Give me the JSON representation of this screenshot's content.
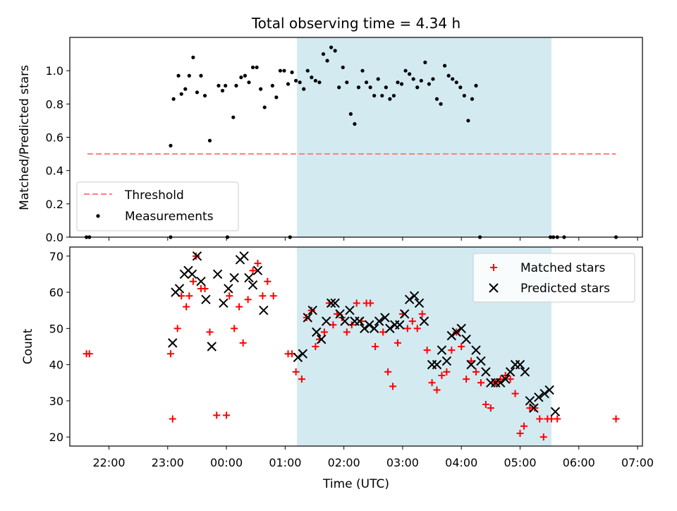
{
  "chart_data": [
    {
      "type": "scatter",
      "title": "Total observing time = 4.34 h",
      "ylabel": "Matched/Predicted stars",
      "ylim": [
        0,
        1.2
      ],
      "yticks": [
        "0.0",
        "0.2",
        "0.4",
        "0.6",
        "0.8",
        "1.0"
      ],
      "x_unit": "time (UTC)",
      "xlim": [
        "21:20",
        "07:05"
      ],
      "shaded_interval": [
        "01:12",
        "05:32"
      ],
      "shade_color": "#d3eaf1",
      "grid": false,
      "legend_position": "lower-left",
      "threshold": {
        "name": "Threshold",
        "value": 0.5,
        "x_range": [
          "21:38",
          "06:38"
        ],
        "color": "#ff7f7f",
        "style": "dashed"
      },
      "series": [
        {
          "name": "Measurements",
          "marker": "dot",
          "color": "#000000",
          "points": [
            [
              "21:37",
              0.0
            ],
            [
              "21:40",
              0.0
            ],
            [
              "23:03",
              0.0
            ],
            [
              "00:01",
              0.0
            ],
            [
              "01:05",
              0.0
            ],
            [
              "23:03",
              0.55
            ],
            [
              "23:06",
              0.83
            ],
            [
              "23:11",
              0.97
            ],
            [
              "23:14",
              0.86
            ],
            [
              "23:18",
              0.89
            ],
            [
              "23:22",
              0.97
            ],
            [
              "23:26",
              1.08
            ],
            [
              "23:30",
              0.87
            ],
            [
              "23:34",
              0.97
            ],
            [
              "23:38",
              0.85
            ],
            [
              "23:43",
              0.58
            ],
            [
              "23:52",
              0.91
            ],
            [
              "23:56",
              0.88
            ],
            [
              "23:59",
              0.91
            ],
            [
              "00:07",
              0.72
            ],
            [
              "00:10",
              0.91
            ],
            [
              "00:15",
              0.96
            ],
            [
              "00:19",
              0.97
            ],
            [
              "00:23",
              0.93
            ],
            [
              "00:27",
              1.02
            ],
            [
              "00:31",
              1.02
            ],
            [
              "00:35",
              0.89
            ],
            [
              "00:39",
              0.78
            ],
            [
              "00:47",
              0.91
            ],
            [
              "00:51",
              0.84
            ],
            [
              "00:55",
              1.0
            ],
            [
              "00:59",
              1.0
            ],
            [
              "01:03",
              0.92
            ],
            [
              "01:07",
              0.99
            ],
            [
              "01:11",
              0.94
            ],
            [
              "01:15",
              0.93
            ],
            [
              "01:19",
              0.89
            ],
            [
              "01:23",
              1.0
            ],
            [
              "01:27",
              0.96
            ],
            [
              "01:31",
              0.94
            ],
            [
              "01:35",
              0.93
            ],
            [
              "01:39",
              1.1
            ],
            [
              "01:43",
              1.06
            ],
            [
              "01:47",
              1.14
            ],
            [
              "01:51",
              1.12
            ],
            [
              "01:55",
              0.9
            ],
            [
              "01:59",
              1.02
            ],
            [
              "02:03",
              0.93
            ],
            [
              "02:07",
              0.74
            ],
            [
              "02:11",
              0.68
            ],
            [
              "02:15",
              0.9
            ],
            [
              "02:19",
              1.0
            ],
            [
              "02:23",
              0.93
            ],
            [
              "02:27",
              0.9
            ],
            [
              "02:31",
              0.85
            ],
            [
              "02:35",
              0.95
            ],
            [
              "02:39",
              0.85
            ],
            [
              "02:43",
              0.9
            ],
            [
              "02:47",
              0.83
            ],
            [
              "02:51",
              0.85
            ],
            [
              "02:55",
              0.93
            ],
            [
              "02:59",
              0.92
            ],
            [
              "03:03",
              1.0
            ],
            [
              "03:07",
              0.98
            ],
            [
              "03:11",
              0.95
            ],
            [
              "03:15",
              0.9
            ],
            [
              "03:19",
              0.94
            ],
            [
              "03:23",
              1.05
            ],
            [
              "03:27",
              0.92
            ],
            [
              "03:31",
              0.95
            ],
            [
              "03:35",
              0.83
            ],
            [
              "03:39",
              0.8
            ],
            [
              "03:43",
              1.03
            ],
            [
              "03:47",
              0.97
            ],
            [
              "03:51",
              0.95
            ],
            [
              "03:55",
              0.93
            ],
            [
              "03:59",
              0.9
            ],
            [
              "04:03",
              0.85
            ],
            [
              "04:07",
              0.7
            ],
            [
              "04:11",
              0.83
            ],
            [
              "04:15",
              0.91
            ],
            [
              "04:19",
              0.0
            ],
            [
              "05:31",
              0.0
            ],
            [
              "05:34",
              0.0
            ],
            [
              "05:38",
              0.0
            ],
            [
              "05:45",
              0.0
            ],
            [
              "06:38",
              0.0
            ]
          ]
        }
      ]
    },
    {
      "type": "scatter",
      "xlabel": "Time (UTC)",
      "ylabel": "Count",
      "ylim": [
        17.5,
        72.5
      ],
      "yticks": [
        "20",
        "30",
        "40",
        "50",
        "60",
        "70"
      ],
      "xticks": [
        "22:00",
        "23:00",
        "00:00",
        "01:00",
        "02:00",
        "03:00",
        "04:00",
        "05:00",
        "06:00",
        "07:00"
      ],
      "xlim": [
        "21:20",
        "07:05"
      ],
      "shaded_interval": [
        "01:12",
        "05:32"
      ],
      "shade_color": "#d3eaf1",
      "grid": false,
      "legend_position": "upper-right",
      "series": [
        {
          "name": "Matched stars",
          "marker": "plus",
          "color": "#ff0000",
          "points": [
            [
              "21:37",
              43
            ],
            [
              "21:40",
              43
            ],
            [
              "23:03",
              43
            ],
            [
              "23:05",
              25
            ],
            [
              "23:10",
              50
            ],
            [
              "23:14",
              59
            ],
            [
              "23:19",
              56
            ],
            [
              "23:22",
              59
            ],
            [
              "23:26",
              63
            ],
            [
              "23:29",
              70
            ],
            [
              "23:34",
              61
            ],
            [
              "23:38",
              61
            ],
            [
              "23:43",
              49
            ],
            [
              "23:50",
              26
            ],
            [
              "00:00",
              26
            ],
            [
              "00:03",
              59
            ],
            [
              "00:08",
              50
            ],
            [
              "00:13",
              56
            ],
            [
              "00:17",
              46
            ],
            [
              "00:22",
              58
            ],
            [
              "00:27",
              66
            ],
            [
              "00:32",
              68
            ],
            [
              "00:37",
              59
            ],
            [
              "00:42",
              63
            ],
            [
              "00:48",
              59
            ],
            [
              "01:03",
              43
            ],
            [
              "01:07",
              43
            ],
            [
              "01:11",
              38
            ],
            [
              "01:17",
              36
            ],
            [
              "01:22",
              53
            ],
            [
              "01:27",
              55
            ],
            [
              "01:31",
              45
            ],
            [
              "01:35",
              47
            ],
            [
              "01:40",
              49
            ],
            [
              "01:45",
              57
            ],
            [
              "01:49",
              51
            ],
            [
              "01:53",
              54
            ],
            [
              "01:58",
              53
            ],
            [
              "02:03",
              49
            ],
            [
              "02:08",
              51
            ],
            [
              "02:13",
              57
            ],
            [
              "02:18",
              52
            ],
            [
              "02:23",
              57
            ],
            [
              "02:27",
              57
            ],
            [
              "02:32",
              45
            ],
            [
              "02:40",
              49
            ],
            [
              "02:45",
              38
            ],
            [
              "02:50",
              34
            ],
            [
              "02:55",
              46
            ],
            [
              "03:00",
              54
            ],
            [
              "03:05",
              50
            ],
            [
              "03:10",
              52
            ],
            [
              "03:15",
              50
            ],
            [
              "03:20",
              54
            ],
            [
              "03:25",
              44
            ],
            [
              "03:30",
              35
            ],
            [
              "03:35",
              33
            ],
            [
              "03:40",
              37
            ],
            [
              "03:45",
              38
            ],
            [
              "03:50",
              44
            ],
            [
              "03:55",
              49
            ],
            [
              "04:00",
              45
            ],
            [
              "04:05",
              36
            ],
            [
              "04:10",
              41
            ],
            [
              "04:15",
              38
            ],
            [
              "04:20",
              35
            ],
            [
              "04:25",
              29
            ],
            [
              "04:30",
              28
            ],
            [
              "04:35",
              35
            ],
            [
              "04:40",
              36
            ],
            [
              "04:45",
              37
            ],
            [
              "04:50",
              36
            ],
            [
              "04:55",
              32
            ],
            [
              "05:00",
              21
            ],
            [
              "05:04",
              23
            ],
            [
              "05:10",
              28
            ],
            [
              "05:15",
              28
            ],
            [
              "05:20",
              25
            ],
            [
              "05:24",
              20
            ],
            [
              "05:28",
              25
            ],
            [
              "05:32",
              25
            ],
            [
              "05:38",
              25
            ],
            [
              "06:38",
              25
            ]
          ]
        },
        {
          "name": "Predicted stars",
          "marker": "x",
          "color": "#000000",
          "points": [
            [
              "23:05",
              46
            ],
            [
              "23:08",
              60
            ],
            [
              "23:12",
              61
            ],
            [
              "23:17",
              65
            ],
            [
              "23:21",
              66
            ],
            [
              "23:25",
              65
            ],
            [
              "23:30",
              70
            ],
            [
              "23:34",
              63
            ],
            [
              "23:39",
              58
            ],
            [
              "23:45",
              45
            ],
            [
              "23:51",
              65
            ],
            [
              "23:57",
              57
            ],
            [
              "00:02",
              61
            ],
            [
              "00:08",
              64
            ],
            [
              "00:14",
              69
            ],
            [
              "00:18",
              70
            ],
            [
              "00:23",
              64
            ],
            [
              "00:27",
              62
            ],
            [
              "00:32",
              66
            ],
            [
              "00:38",
              55
            ],
            [
              "01:13",
              42
            ],
            [
              "01:18",
              43
            ],
            [
              "01:23",
              53
            ],
            [
              "01:28",
              55
            ],
            [
              "01:32",
              49
            ],
            [
              "01:37",
              47
            ],
            [
              "01:42",
              52
            ],
            [
              "01:47",
              57
            ],
            [
              "01:51",
              57
            ],
            [
              "01:56",
              54
            ],
            [
              "02:01",
              52
            ],
            [
              "02:06",
              55
            ],
            [
              "02:11",
              52
            ],
            [
              "02:16",
              52
            ],
            [
              "02:21",
              50
            ],
            [
              "02:26",
              51
            ],
            [
              "02:31",
              50
            ],
            [
              "02:36",
              52
            ],
            [
              "02:42",
              53
            ],
            [
              "02:47",
              50
            ],
            [
              "02:52",
              51
            ],
            [
              "02:57",
              51
            ],
            [
              "03:02",
              54
            ],
            [
              "03:07",
              58
            ],
            [
              "03:12",
              59
            ],
            [
              "03:17",
              57
            ],
            [
              "03:22",
              52
            ],
            [
              "03:30",
              40
            ],
            [
              "03:35",
              40
            ],
            [
              "03:40",
              44
            ],
            [
              "03:45",
              41
            ],
            [
              "03:50",
              48
            ],
            [
              "03:55",
              49
            ],
            [
              "04:00",
              50
            ],
            [
              "04:05",
              47
            ],
            [
              "04:10",
              40
            ],
            [
              "04:15",
              44
            ],
            [
              "04:20",
              41
            ],
            [
              "04:25",
              38
            ],
            [
              "04:30",
              35
            ],
            [
              "04:35",
              35
            ],
            [
              "04:40",
              35
            ],
            [
              "04:45",
              36
            ],
            [
              "04:50",
              38
            ],
            [
              "04:55",
              40
            ],
            [
              "05:00",
              40
            ],
            [
              "05:05",
              38
            ],
            [
              "05:10",
              30
            ],
            [
              "05:14",
              28
            ],
            [
              "05:19",
              31
            ],
            [
              "05:25",
              32
            ],
            [
              "05:30",
              33
            ],
            [
              "05:36",
              27
            ]
          ]
        }
      ]
    }
  ]
}
